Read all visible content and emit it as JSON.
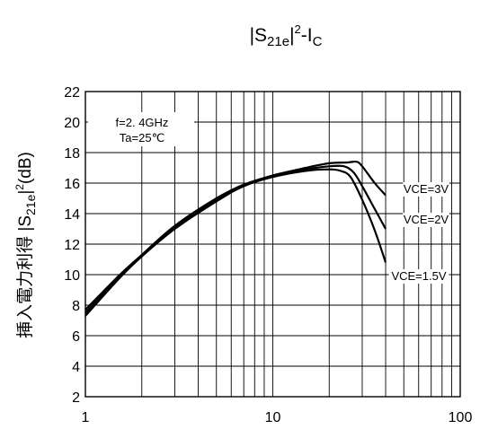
{
  "chart_data": {
    "type": "line",
    "title": {
      "prefix": "|S",
      "sub": "21e",
      "mid": "|",
      "sup": "2",
      "suffix": "-I",
      "sub2": "C"
    },
    "ylabel": {
      "prefix": "挿入電力利得 |S",
      "sub": "21e",
      "mid": "|",
      "sup": "2",
      "suffix": "(dB)"
    },
    "x_scale": "log",
    "xlim": [
      1,
      100
    ],
    "ylim": [
      2,
      22
    ],
    "x_ticks": [
      1,
      10,
      100
    ],
    "x_tick_labels": [
      "1",
      "10",
      "100"
    ],
    "y_ticks": [
      2,
      4,
      6,
      8,
      10,
      12,
      14,
      16,
      18,
      20,
      22
    ],
    "grid": true,
    "annotation": {
      "line1": "f=2. 4GHz",
      "line2": "Ta=25℃"
    },
    "series": [
      {
        "name": "VCE=3V",
        "x": [
          1,
          1.5,
          2,
          3,
          5,
          7,
          10,
          15,
          20,
          25,
          28,
          30,
          35,
          40
        ],
        "y": [
          7.7,
          9.9,
          11.3,
          13.2,
          15.0,
          15.9,
          16.5,
          17.0,
          17.3,
          17.35,
          17.4,
          17.1,
          16.0,
          15.2
        ]
      },
      {
        "name": "VCE=2V",
        "x": [
          1,
          1.5,
          2,
          3,
          5,
          7,
          10,
          15,
          20,
          24,
          27,
          30,
          35,
          40
        ],
        "y": [
          7.5,
          9.8,
          11.2,
          13.1,
          14.9,
          15.8,
          16.5,
          16.9,
          17.1,
          17.1,
          16.7,
          15.8,
          14.3,
          13.0
        ]
      },
      {
        "name": "VCE=1.5V",
        "x": [
          1,
          1.5,
          2,
          3,
          5,
          7,
          10,
          15,
          20,
          23,
          26,
          30,
          35,
          40
        ],
        "y": [
          7.3,
          9.7,
          11.2,
          13.0,
          14.8,
          15.8,
          16.4,
          16.8,
          16.9,
          16.8,
          16.4,
          14.9,
          12.9,
          10.8
        ]
      }
    ]
  }
}
